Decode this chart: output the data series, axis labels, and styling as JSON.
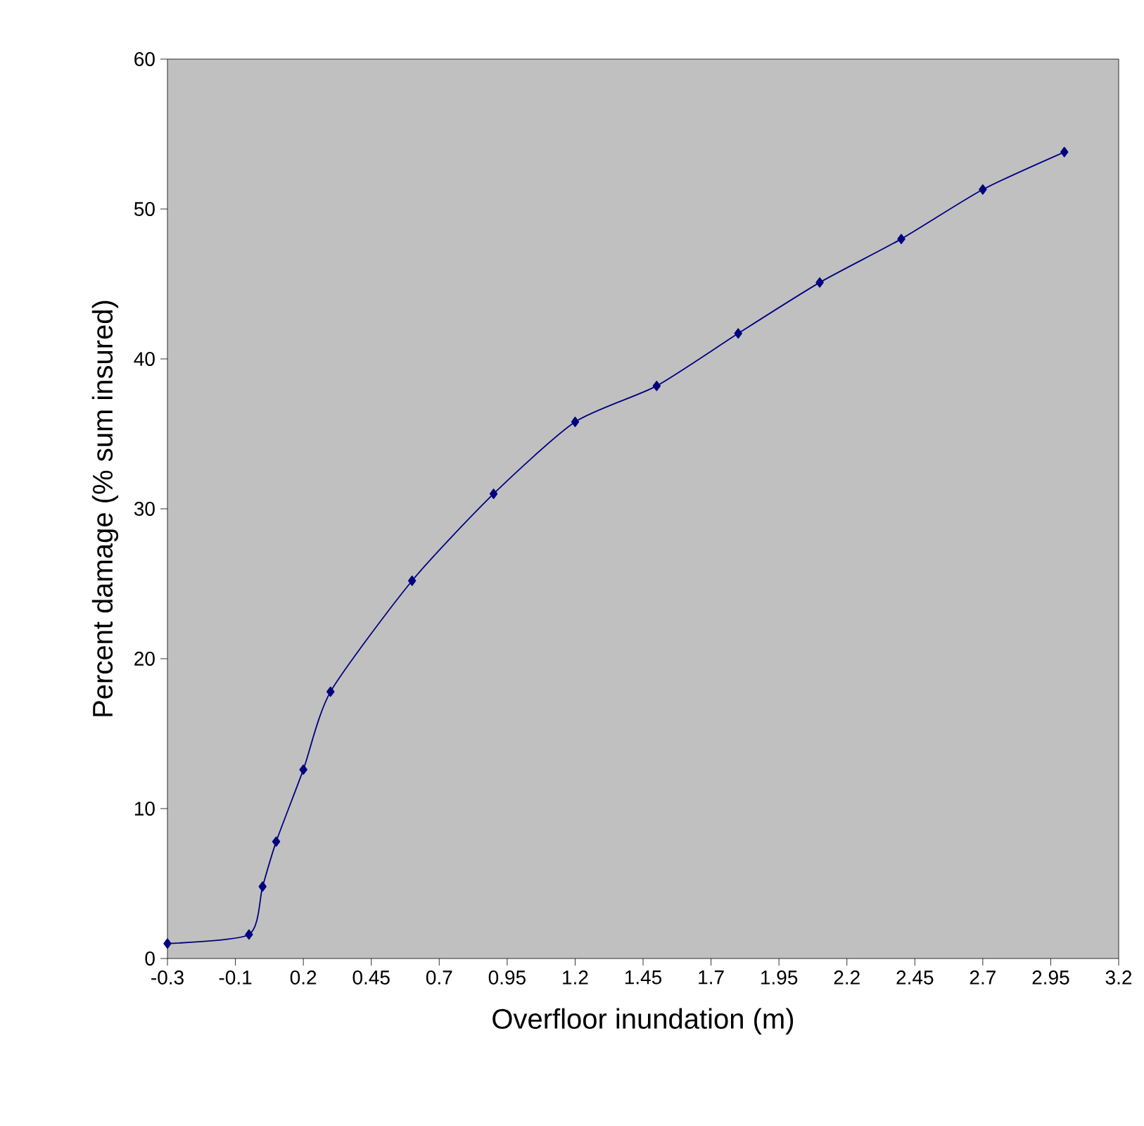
{
  "chart_data": {
    "type": "line",
    "xlabel": "Overfloor inundation (m)",
    "ylabel": "Percent damage (% sum insured)",
    "x": [
      -0.3,
      0.0,
      0.05,
      0.1,
      0.2,
      0.3,
      0.6,
      0.9,
      1.2,
      1.5,
      1.8,
      2.1,
      2.4,
      2.7,
      3.0
    ],
    "series": [
      {
        "color": "#000080",
        "values": [
          1.0,
          1.6,
          4.8,
          7.8,
          12.6,
          17.8,
          25.2,
          31.0,
          35.8,
          38.2,
          41.7,
          45.1,
          48.0,
          51.3,
          53.8
        ]
      }
    ],
    "xlim": [
      -0.3,
      3.2
    ],
    "xticks": [
      -0.3,
      {
        "value": -0.05,
        "label": "-0.1"
      },
      0.2,
      0.45,
      0.7,
      0.95,
      1.2,
      1.45,
      1.7,
      1.95,
      2.2,
      2.45,
      2.7,
      2.95,
      3.2
    ],
    "ylim": [
      0,
      60
    ],
    "yticks": [
      0,
      10,
      20,
      30,
      40,
      50,
      60
    ],
    "marker": "diamond",
    "line_style": "solid"
  }
}
